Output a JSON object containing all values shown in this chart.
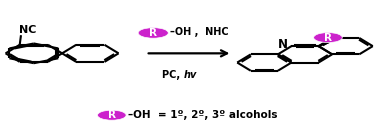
{
  "bg_color": "#ffffff",
  "purple": "#CC22CC",
  "black": "#000000",
  "figsize": [
    3.78,
    1.33
  ],
  "dpi": 100,
  "lw": 1.5,
  "r_small": 0.072,
  "reagent1": "–OH ,  NHC",
  "reagent2": "PC, ",
  "reagent2b": "hv",
  "bottom_text": "–OH  = 1º, 2º, 3º alcohols"
}
